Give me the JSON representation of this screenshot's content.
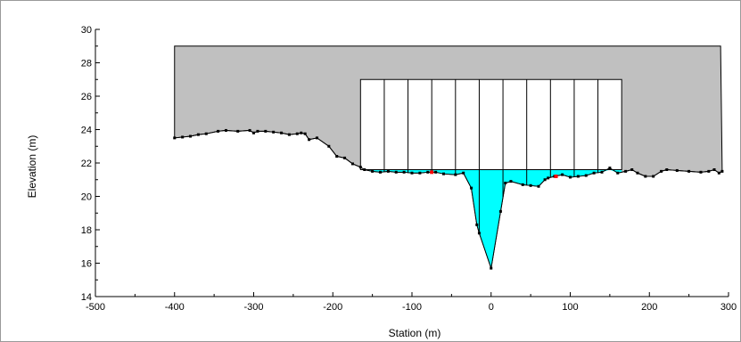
{
  "chart_data": {
    "type": "area",
    "title": "",
    "xlabel": "Station (m)",
    "ylabel": "Elevation (m)",
    "xlim": [
      -500,
      300
    ],
    "ylim": [
      14,
      30
    ],
    "x_ticks": [
      -500,
      -400,
      -300,
      -200,
      -100,
      0,
      100,
      200,
      300
    ],
    "y_ticks": [
      14,
      16,
      18,
      20,
      22,
      24,
      26,
      28,
      30
    ],
    "grid": false,
    "legend": "none",
    "colors": {
      "embankment": "#c0c0c0",
      "water": "#00ffff",
      "bridge_deck": "#ffffff",
      "ground_line": "#000000",
      "point_marker": "#000000",
      "highlight_marker": "#ff0000"
    },
    "embankment_top": {
      "x": [
        -400,
        290
      ],
      "y": 29
    },
    "bridge_deck": {
      "x": [
        -165,
        165
      ],
      "top": 27,
      "bottom": 21.6
    },
    "piers_x": [
      -135,
      -105,
      -75,
      -45,
      -15,
      15,
      45,
      75,
      105,
      135
    ],
    "water_surface_elevation": 21.6,
    "ground_profile": [
      {
        "x": -400,
        "y": 23.5
      },
      {
        "x": -390,
        "y": 23.55
      },
      {
        "x": -380,
        "y": 23.6
      },
      {
        "x": -370,
        "y": 23.7
      },
      {
        "x": -360,
        "y": 23.75
      },
      {
        "x": -345,
        "y": 23.9
      },
      {
        "x": -335,
        "y": 23.95
      },
      {
        "x": -320,
        "y": 23.9
      },
      {
        "x": -305,
        "y": 23.95
      },
      {
        "x": -300,
        "y": 23.8
      },
      {
        "x": -295,
        "y": 23.9
      },
      {
        "x": -285,
        "y": 23.9
      },
      {
        "x": -275,
        "y": 23.85
      },
      {
        "x": -265,
        "y": 23.8
      },
      {
        "x": -255,
        "y": 23.7
      },
      {
        "x": -245,
        "y": 23.75
      },
      {
        "x": -240,
        "y": 23.8
      },
      {
        "x": -235,
        "y": 23.75
      },
      {
        "x": -230,
        "y": 23.4
      },
      {
        "x": -220,
        "y": 23.5
      },
      {
        "x": -205,
        "y": 23.0
      },
      {
        "x": -195,
        "y": 22.4
      },
      {
        "x": -185,
        "y": 22.3
      },
      {
        "x": -175,
        "y": 21.95
      },
      {
        "x": -165,
        "y": 21.75
      },
      {
        "x": -160,
        "y": 21.6
      },
      {
        "x": -150,
        "y": 21.5
      },
      {
        "x": -140,
        "y": 21.45
      },
      {
        "x": -130,
        "y": 21.5
      },
      {
        "x": -120,
        "y": 21.45
      },
      {
        "x": -110,
        "y": 21.45
      },
      {
        "x": -100,
        "y": 21.4
      },
      {
        "x": -90,
        "y": 21.4
      },
      {
        "x": -80,
        "y": 21.45
      },
      {
        "x": -70,
        "y": 21.45
      },
      {
        "x": -60,
        "y": 21.35
      },
      {
        "x": -45,
        "y": 21.3
      },
      {
        "x": -35,
        "y": 21.4
      },
      {
        "x": -25,
        "y": 20.5
      },
      {
        "x": -18,
        "y": 18.3
      },
      {
        "x": -15,
        "y": 17.8
      },
      {
        "x": 0,
        "y": 15.7
      },
      {
        "x": 12,
        "y": 19.1
      },
      {
        "x": 18,
        "y": 20.8
      },
      {
        "x": 25,
        "y": 20.9
      },
      {
        "x": 40,
        "y": 20.7
      },
      {
        "x": 50,
        "y": 20.65
      },
      {
        "x": 60,
        "y": 20.6
      },
      {
        "x": 68,
        "y": 21.0
      },
      {
        "x": 72,
        "y": 21.1
      },
      {
        "x": 80,
        "y": 21.2
      },
      {
        "x": 90,
        "y": 21.3
      },
      {
        "x": 100,
        "y": 21.15
      },
      {
        "x": 110,
        "y": 21.2
      },
      {
        "x": 120,
        "y": 21.25
      },
      {
        "x": 130,
        "y": 21.4
      },
      {
        "x": 140,
        "y": 21.45
      },
      {
        "x": 150,
        "y": 21.7
      },
      {
        "x": 160,
        "y": 21.4
      },
      {
        "x": 170,
        "y": 21.5
      },
      {
        "x": 178,
        "y": 21.6
      },
      {
        "x": 185,
        "y": 21.4
      },
      {
        "x": 195,
        "y": 21.2
      },
      {
        "x": 205,
        "y": 21.2
      },
      {
        "x": 215,
        "y": 21.5
      },
      {
        "x": 222,
        "y": 21.6
      },
      {
        "x": 235,
        "y": 21.55
      },
      {
        "x": 250,
        "y": 21.5
      },
      {
        "x": 265,
        "y": 21.45
      },
      {
        "x": 275,
        "y": 21.5
      },
      {
        "x": 282,
        "y": 21.6
      },
      {
        "x": 288,
        "y": 21.4
      },
      {
        "x": 292,
        "y": 21.5
      }
    ],
    "highlight_points": [
      {
        "x": -75,
        "y": 21.45
      },
      {
        "x": 82,
        "y": 21.2
      }
    ]
  }
}
